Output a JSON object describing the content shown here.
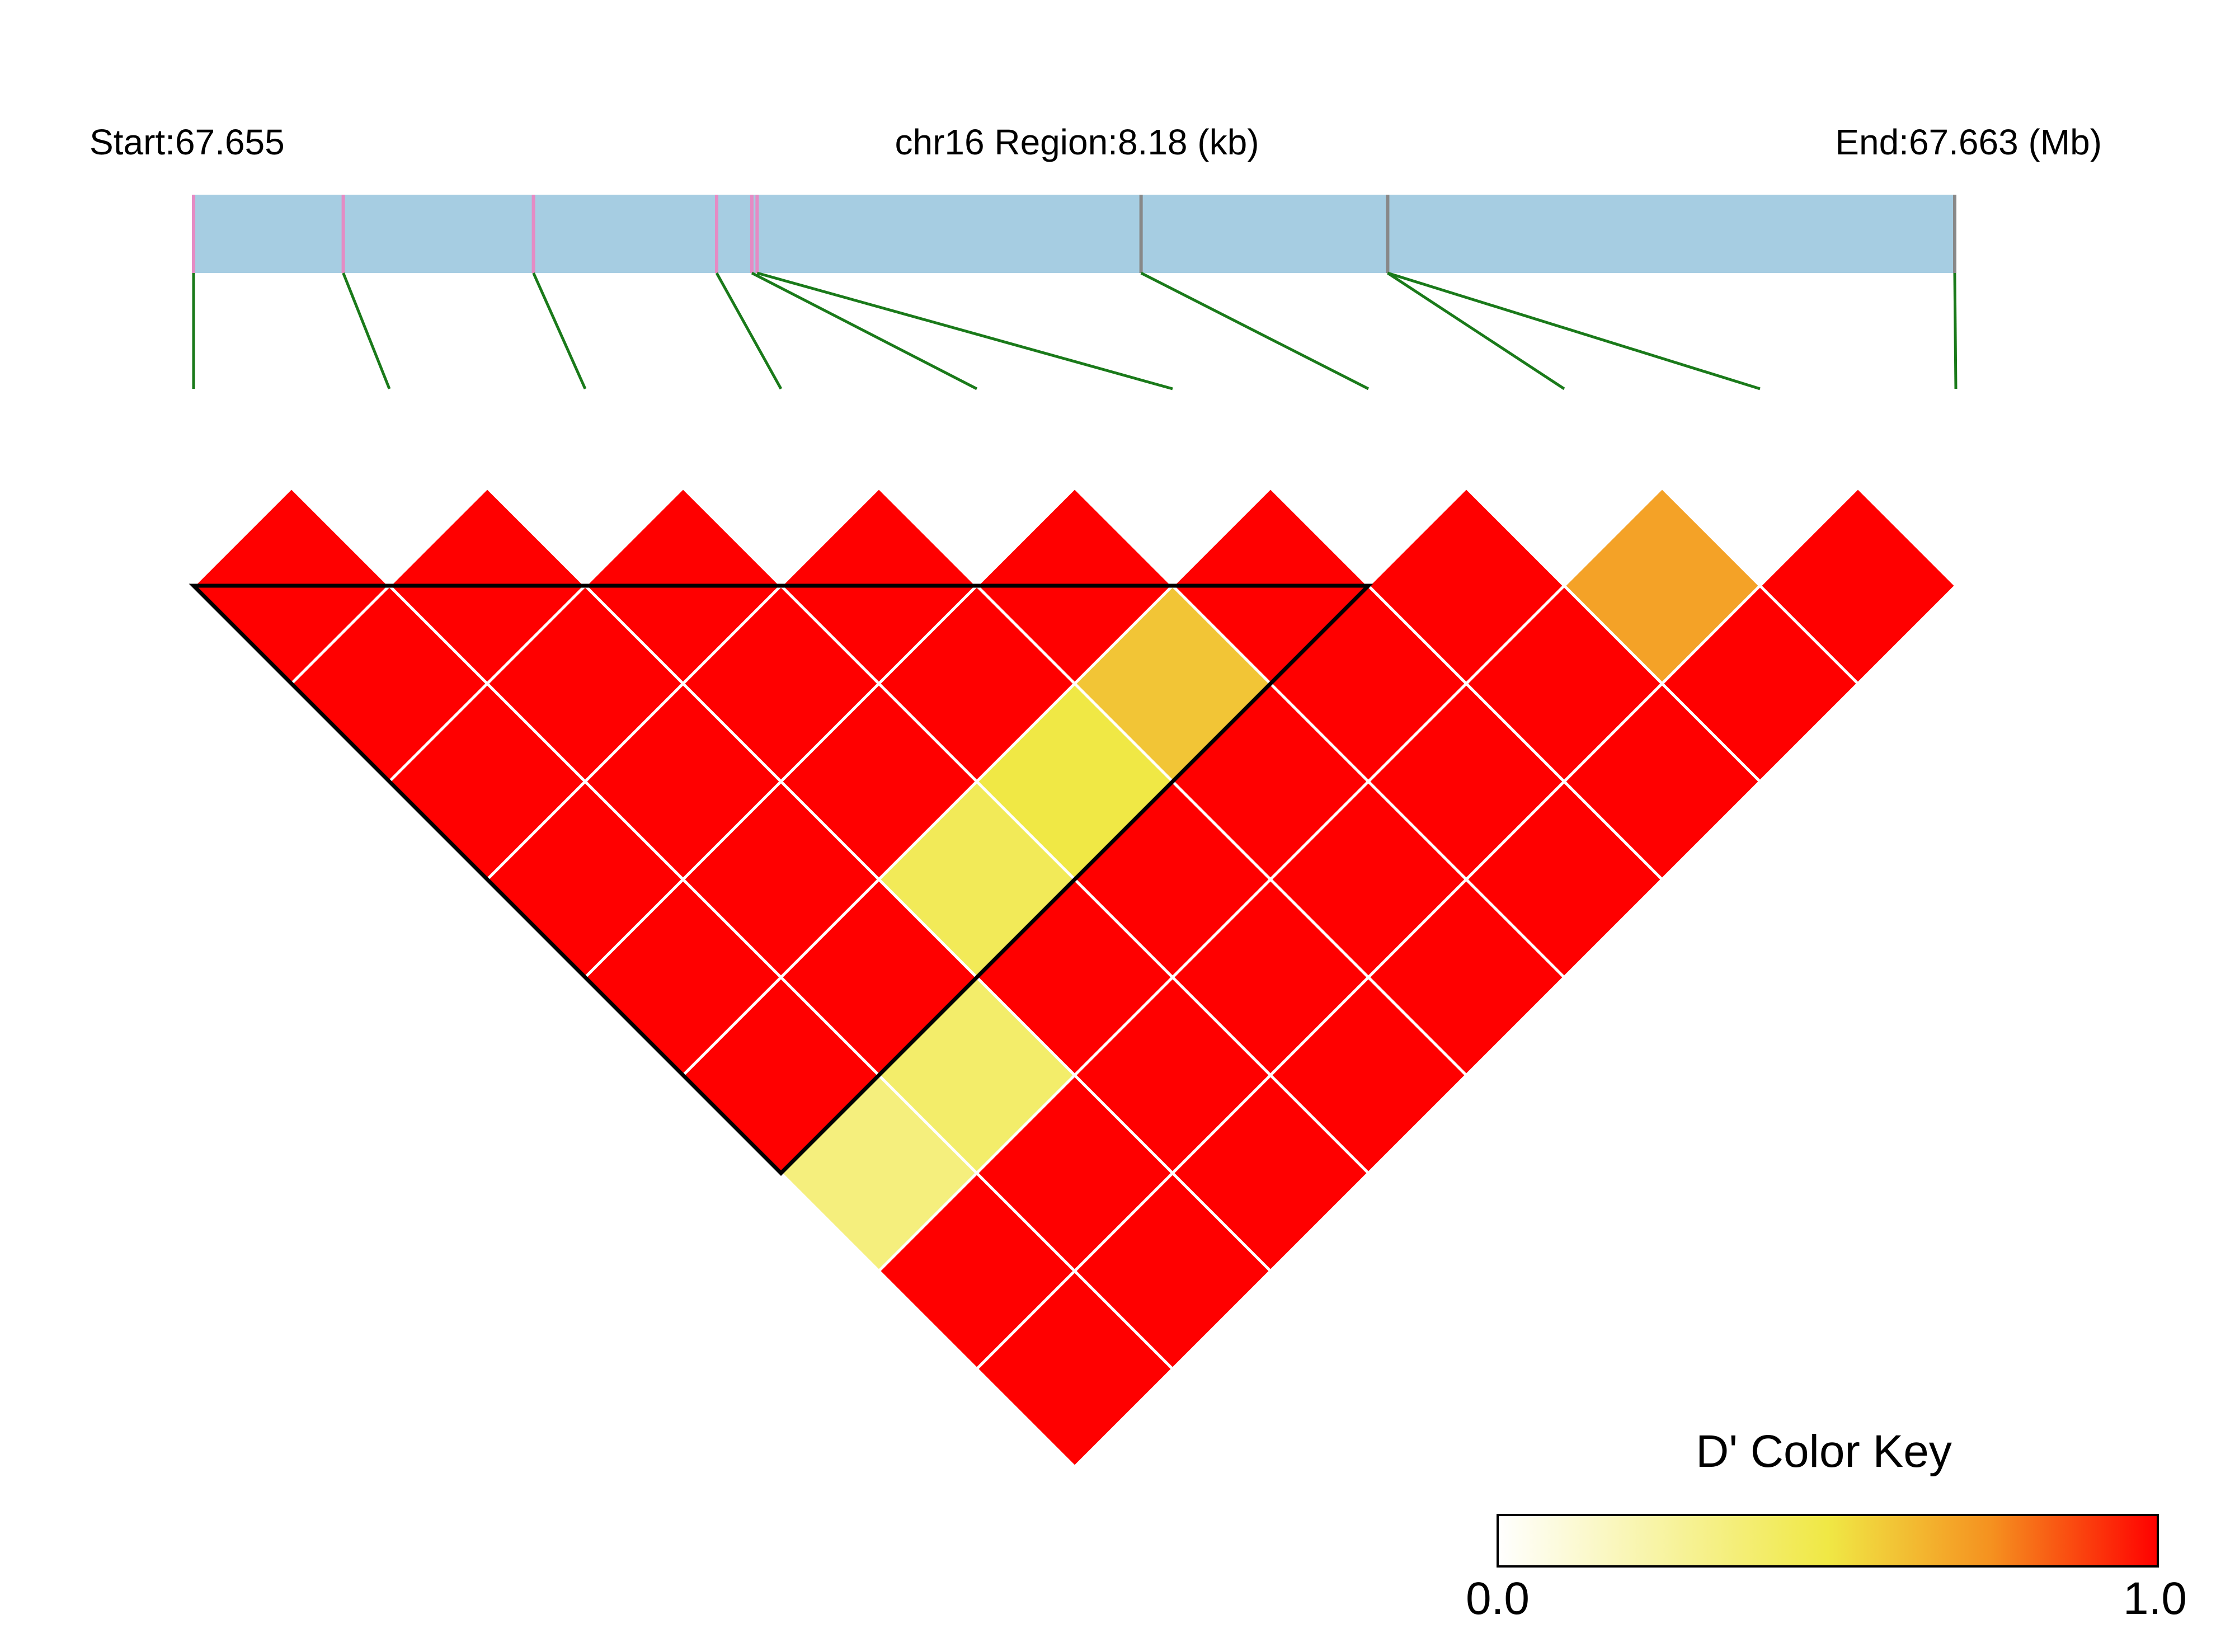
{
  "header": {
    "start_label": "Start:67.655",
    "region_label": "chr16 Region:8.18 (kb)",
    "end_label": "End:67.663 (Mb)"
  },
  "colors": {
    "region_bar": "#a6cde2",
    "snp_tick_pink": "#e58bc4",
    "snp_tick_gray": "#888888",
    "connector": "#1a7a1a",
    "cell_border": "#ffffff",
    "block_outline": "#000000",
    "key_low": "#ffffff",
    "key_mid": "#f0e845",
    "key_high": "#ff0000"
  },
  "chart_data": {
    "type": "heatmap",
    "title": "",
    "measure": "D'",
    "n_snps": 10,
    "region": {
      "chromosome": "chr16",
      "start_mb": 67.655,
      "end_mb": 67.663,
      "length_kb": 8.18
    },
    "snp_relative_positions": [
      0.0,
      0.085,
      0.193,
      0.297,
      0.317,
      0.32,
      0.538,
      0.678,
      0.678,
      1.0
    ],
    "snp_tick_colors": [
      "pink",
      "pink",
      "pink",
      "pink",
      "pink",
      "pink",
      "gray",
      "gray",
      "gray",
      "gray"
    ],
    "dprime": [
      [
        null,
        1.0,
        1.0,
        1.0,
        1.0,
        1.0,
        1.0,
        0.35,
        1.0,
        1.0
      ],
      [
        1.0,
        null,
        1.0,
        1.0,
        1.0,
        1.0,
        1.0,
        0.4,
        1.0,
        1.0
      ],
      [
        1.0,
        1.0,
        null,
        1.0,
        1.0,
        1.0,
        0.45,
        1.0,
        1.0,
        1.0
      ],
      [
        1.0,
        1.0,
        1.0,
        null,
        1.0,
        1.0,
        0.5,
        1.0,
        1.0,
        1.0
      ],
      [
        1.0,
        1.0,
        1.0,
        1.0,
        null,
        1.0,
        0.6,
        1.0,
        1.0,
        1.0
      ],
      [
        1.0,
        1.0,
        1.0,
        1.0,
        1.0,
        null,
        1.0,
        1.0,
        1.0,
        1.0
      ],
      [
        1.0,
        1.0,
        0.45,
        0.5,
        0.6,
        1.0,
        null,
        1.0,
        1.0,
        1.0
      ],
      [
        0.35,
        0.4,
        1.0,
        1.0,
        1.0,
        1.0,
        1.0,
        null,
        0.7,
        1.0
      ],
      [
        1.0,
        1.0,
        1.0,
        1.0,
        1.0,
        1.0,
        1.0,
        0.7,
        null,
        1.0
      ],
      [
        1.0,
        1.0,
        1.0,
        1.0,
        1.0,
        1.0,
        1.0,
        1.0,
        1.0,
        null
      ]
    ],
    "ld_block": {
      "first_snp": 1,
      "last_snp": 7
    },
    "color_key": {
      "title": "D' Color Key",
      "min_label": "0.0",
      "max_label": "1.0",
      "range": [
        0,
        1
      ]
    }
  }
}
